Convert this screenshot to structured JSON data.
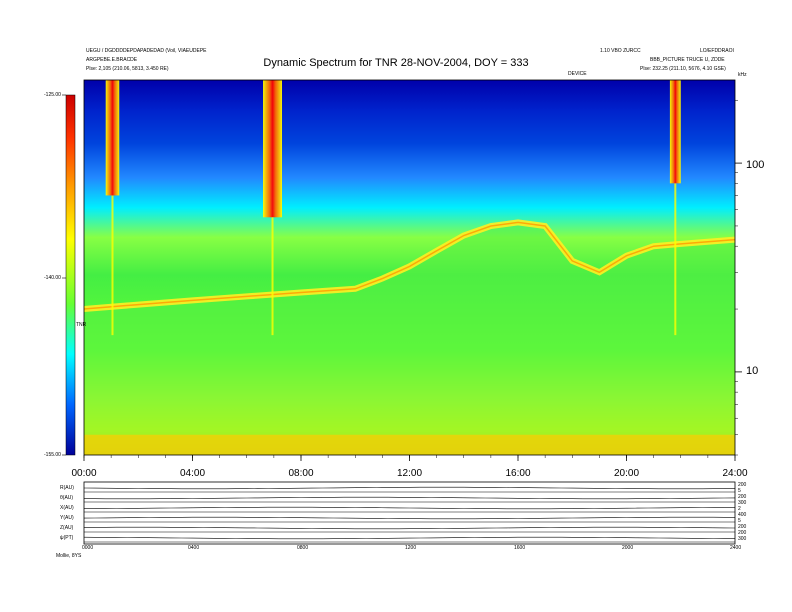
{
  "header": {
    "left_line1": "UEGU / DGDDDDEPDAPADEDAD (Voil, VIAEUDEPE",
    "left_line2": "ARGPEBE.E.BRACDE",
    "left_line3": "Plse: 2,105 (210.06, 5813, 3.450 RE)",
    "right_line1": "1.10 VBO ZURCC",
    "right_line2": "LO/EFDDRAOI",
    "right_line3": "BBB_PICTURE TRUCE U, ZDDE",
    "right_line4": "Plse: 232.25 (211.10, 5676, 4.10 GSE)",
    "top_small_mid": "DEVICE",
    "units_corner": "kHz"
  },
  "colorbar": {
    "unit_label": "TNR",
    "tick_labels": [
      "-125.00",
      "-140.00",
      "-155.00"
    ],
    "colors": [
      "#cc0000",
      "#ff3300",
      "#ff9900",
      "#ffff00",
      "#66ff33",
      "#00ffff",
      "#0066ff",
      "#000099"
    ]
  },
  "chart_data": {
    "type": "heatmap",
    "title": "Dynamic Spectrum for TNR 28-NOV-2004, DOY = 333",
    "xlabel": "",
    "ylabel": "kHz",
    "x_ticks": [
      "00:00",
      "04:00",
      "08:00",
      "12:00",
      "16:00",
      "20:00",
      "24:00"
    ],
    "x_range_hours": [
      0,
      24
    ],
    "y_scale": "log",
    "y_range_khz": [
      4,
      250
    ],
    "y_tick_labels": [
      "100",
      "10"
    ],
    "y_tick_values": [
      100,
      10
    ],
    "colorbar_range": [
      -155,
      -125
    ],
    "bursts": [
      {
        "start_hour": 0.8,
        "end_hour": 1.3,
        "low_khz": 70,
        "high_khz": 250
      },
      {
        "start_hour": 6.6,
        "end_hour": 7.3,
        "low_khz": 55,
        "high_khz": 250
      },
      {
        "start_hour": 21.6,
        "end_hour": 22.0,
        "low_khz": 80,
        "high_khz": 250
      }
    ],
    "band_edge_profile": {
      "hours": [
        0,
        2,
        4,
        6,
        8,
        10,
        11,
        12,
        13,
        14,
        15,
        16,
        17,
        18,
        19,
        20,
        21,
        22,
        23,
        24
      ],
      "edge_khz": [
        20,
        21,
        22,
        23,
        24,
        25,
        28,
        32,
        38,
        45,
        50,
        52,
        50,
        34,
        30,
        36,
        40,
        41,
        42,
        43
      ]
    }
  },
  "orbit_panel": {
    "row_labels": [
      "R(AU)",
      "θ(AU)",
      "X(AU)",
      "Y(AU)",
      "Z(AU)",
      "ψ(PT)"
    ],
    "right_labels": [
      "200",
      "5",
      "200",
      "300",
      "2",
      "400",
      "5",
      "200",
      "200",
      "300"
    ],
    "x_labels": [
      "0000",
      "0400",
      "0800",
      "1200",
      "1600",
      "2000",
      "2400"
    ],
    "footer_label": "Mollie, 8YS"
  }
}
